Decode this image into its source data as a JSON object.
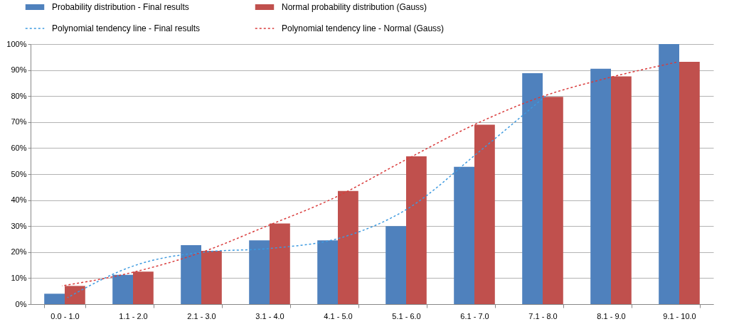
{
  "chart_data": {
    "type": "bar",
    "categories": [
      "0.0 - 1.0",
      "1.1 - 2.0",
      "2.1 - 3.0",
      "3.1 - 4.0",
      "4.1 - 5.0",
      "5.1 - 6.0",
      "6.1 - 7.0",
      "7.1 - 8.0",
      "8.1 - 9.0",
      "9.1 - 10.0"
    ],
    "series": [
      {
        "name": "Probability distribution - Final results",
        "color": "#4f81bd",
        "values": [
          4,
          11.3,
          22.7,
          24.5,
          24.5,
          30,
          52.8,
          88.8,
          90.5,
          100
        ]
      },
      {
        "name": "Normal probability distribution (Gauss)",
        "color": "#c0504d",
        "values": [
          7,
          12.5,
          20.5,
          31,
          43.5,
          56.8,
          69,
          79.7,
          87.6,
          93.2
        ]
      },
      {
        "name": "Polynomial tendency line - Final results",
        "color": "#3d9ae0",
        "type": "line",
        "values": [
          2.5,
          15,
          20,
          21.5,
          25.5,
          37,
          58,
          80,
          null,
          null
        ]
      },
      {
        "name": "Polynomial tendency line - Normal (Gauss)",
        "color": "#d93b3b",
        "type": "line",
        "values": [
          7,
          12,
          19.5,
          30,
          41,
          55,
          68.5,
          79.5,
          87,
          93
        ]
      }
    ],
    "ylim": [
      0,
      100
    ],
    "yticks": [
      {
        "value": 0,
        "label": "0%"
      },
      {
        "value": 10,
        "label": "10%"
      },
      {
        "value": 20,
        "label": "20%"
      },
      {
        "value": 30,
        "label": "30%"
      },
      {
        "value": 40,
        "label": "40%"
      },
      {
        "value": 50,
        "label": "50%"
      },
      {
        "value": 60,
        "label": "60%"
      },
      {
        "value": 70,
        "label": "70%"
      },
      {
        "value": 80,
        "label": "80%"
      },
      {
        "value": 90,
        "label": "90%"
      },
      {
        "value": 100,
        "label": "100%"
      }
    ],
    "grid": "y",
    "legend": "top",
    "line_style": "dashed"
  }
}
